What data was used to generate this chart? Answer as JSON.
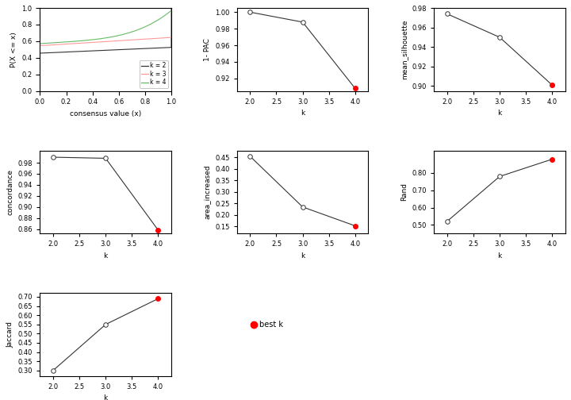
{
  "ecdf": {
    "k2": {
      "color": "#333333"
    },
    "k3": {
      "color": "#FF9999"
    },
    "k4": {
      "color": "#66BB66"
    }
  },
  "one_minus_pac": {
    "k": [
      2,
      3,
      4
    ],
    "y": [
      1.0,
      0.988,
      0.908
    ],
    "best_k": 4,
    "ylim": [
      0.905,
      1.005
    ],
    "yticks": [
      0.92,
      0.94,
      0.96,
      0.98,
      1.0
    ],
    "ylabel": "1- PAC"
  },
  "mean_silhouette": {
    "k": [
      2,
      3,
      4
    ],
    "y": [
      0.974,
      0.95,
      0.901
    ],
    "best_k": 4,
    "ylim": [
      0.895,
      0.98
    ],
    "yticks": [
      0.9,
      0.92,
      0.94,
      0.96,
      0.98
    ],
    "ylabel": "mean_silhouette"
  },
  "concordance": {
    "k": [
      2,
      3,
      4
    ],
    "y": [
      0.99,
      0.988,
      0.858
    ],
    "best_k": 4,
    "ylim": [
      0.852,
      1.002
    ],
    "yticks": [
      0.86,
      0.88,
      0.9,
      0.92,
      0.94,
      0.96,
      0.98
    ],
    "ylabel": "concordance"
  },
  "area_increased": {
    "k": [
      2,
      3,
      4
    ],
    "y": [
      0.455,
      0.235,
      0.153
    ],
    "best_k": 4,
    "ylim": [
      0.12,
      0.48
    ],
    "yticks": [
      0.15,
      0.2,
      0.25,
      0.3,
      0.35,
      0.4,
      0.45
    ],
    "ylabel": "area_increased"
  },
  "rand": {
    "k": [
      2,
      3,
      4
    ],
    "y": [
      0.52,
      0.78,
      0.88
    ],
    "best_k": 4,
    "ylim": [
      0.45,
      0.93
    ],
    "yticks": [
      0.5,
      0.6,
      0.7,
      0.8
    ],
    "ylabel": "Rand"
  },
  "jaccard": {
    "k": [
      2,
      3,
      4
    ],
    "y": [
      0.3,
      0.55,
      0.69
    ],
    "best_k": 4,
    "ylim": [
      0.27,
      0.72
    ],
    "yticks": [
      0.3,
      0.35,
      0.4,
      0.45,
      0.5,
      0.55,
      0.6,
      0.65,
      0.7
    ],
    "ylabel": "Jaccard"
  },
  "line_color": "#333333",
  "open_circle_color": "white",
  "open_circle_edge": "#333333",
  "best_k_color": "red",
  "bg_color": "white",
  "fs": 6.5
}
